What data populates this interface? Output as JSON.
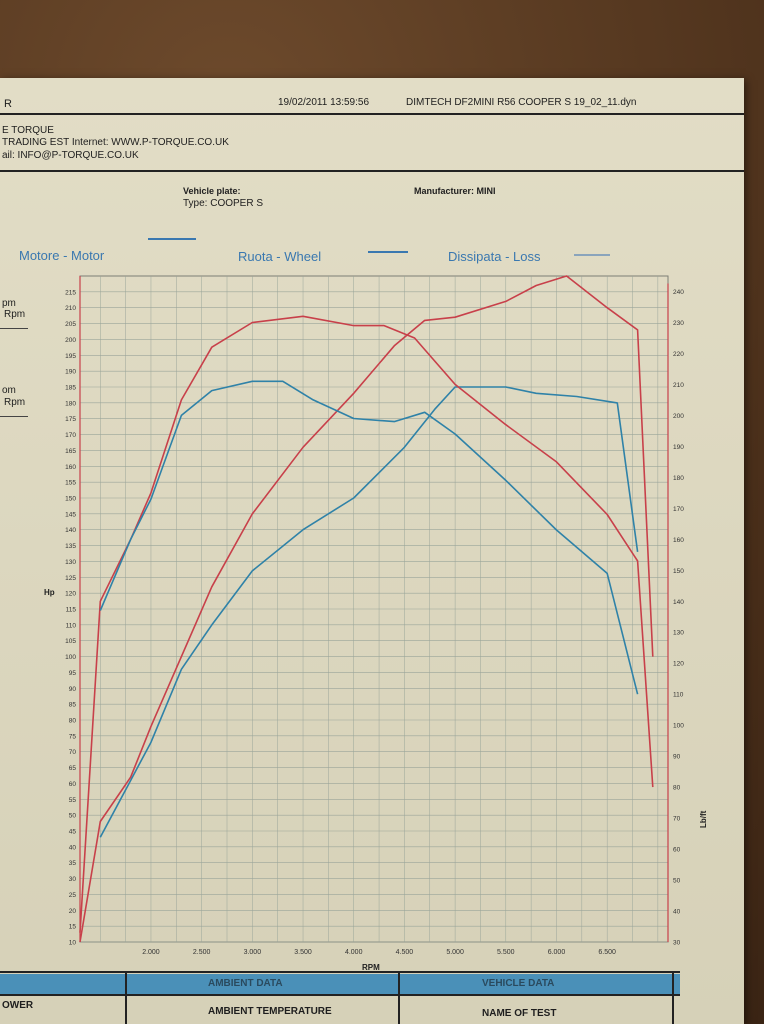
{
  "header": {
    "left_letter": "R",
    "datetime": "19/02/2011 13:59:56",
    "filename": "DIMTECH DF2MINI R56 COOPER S 19_02_11.dyn",
    "company_line1": "E TORQUE",
    "company_line2": "TRADING EST Internet: WWW.P-TORQUE.CO.UK",
    "company_line3": "ail: INFO@P-TORQUE.CO.UK"
  },
  "vehicle": {
    "plate_label": "Vehicle plate:",
    "type_label": "Type: COOPER S",
    "manufacturer_label": "Manufacturer: MINI"
  },
  "legend": {
    "motor": "Motore - Motor",
    "wheel": "Ruota - Wheel",
    "loss": "Dissipata - Loss"
  },
  "side_labels": [
    "pm",
    "Rpm",
    "om",
    "Rpm"
  ],
  "footer": {
    "row1": [
      "AMBIENT DATA",
      "VEHICLE DATA"
    ],
    "row2_left": "OWER",
    "ambient_temp": "AMBIENT TEMPERATURE",
    "name_of_test": "NAME OF TEST"
  },
  "colors": {
    "red_series": "#c8404a",
    "blue_series": "#2f82a8",
    "grid": "#9aa59a",
    "legend_blue": "#3a78b0"
  },
  "chart_data": {
    "type": "line",
    "xlabel": "RPM",
    "ylabel": "Hp",
    "y2label": "Lb/ft",
    "xlim": [
      1300,
      7100
    ],
    "ylim": [
      10,
      220
    ],
    "y2lim": [
      30,
      245
    ],
    "x_ticks": [
      2000,
      2500,
      3000,
      3500,
      4000,
      4500,
      5000,
      5500,
      6000,
      6500
    ],
    "x_tick_labels": [
      "2.000",
      "2.500",
      "3.000",
      "3.500",
      "4.000",
      "4.500",
      "5.000",
      "5.500",
      "6.000",
      "6.500"
    ],
    "y_ticks": [
      10,
      15,
      20,
      25,
      30,
      35,
      40,
      45,
      50,
      55,
      60,
      65,
      70,
      75,
      80,
      85,
      90,
      95,
      100,
      105,
      110,
      115,
      120,
      125,
      130,
      135,
      140,
      145,
      150,
      155,
      160,
      165,
      170,
      175,
      180,
      185,
      190,
      195,
      200,
      205,
      210,
      215
    ],
    "y2_ticks": [
      30,
      40,
      50,
      60,
      70,
      80,
      90,
      100,
      110,
      120,
      130,
      140,
      150,
      160,
      170,
      180,
      190,
      200,
      210,
      220,
      230,
      240
    ],
    "series": [
      {
        "color": "#c8404a",
        "axis": "left",
        "points": [
          [
            1300,
            10
          ],
          [
            1500,
            48
          ],
          [
            1800,
            62
          ],
          [
            2000,
            78
          ],
          [
            2300,
            100
          ],
          [
            2600,
            122
          ],
          [
            3000,
            145
          ],
          [
            3500,
            166
          ],
          [
            4000,
            183
          ],
          [
            4400,
            198
          ],
          [
            4700,
            206
          ],
          [
            5000,
            207
          ],
          [
            5500,
            212
          ],
          [
            5800,
            217
          ],
          [
            6100,
            220
          ],
          [
            6500,
            210
          ],
          [
            6800,
            203
          ],
          [
            6950,
            100
          ]
        ]
      },
      {
        "color": "#2f82a8",
        "axis": "left",
        "points": [
          [
            1500,
            43
          ],
          [
            1700,
            55
          ],
          [
            2000,
            73
          ],
          [
            2300,
            96
          ],
          [
            2600,
            110
          ],
          [
            3000,
            127
          ],
          [
            3500,
            140
          ],
          [
            4000,
            150
          ],
          [
            4500,
            166
          ],
          [
            4800,
            178
          ],
          [
            5000,
            185
          ],
          [
            5300,
            185
          ],
          [
            5500,
            185
          ],
          [
            5800,
            183
          ],
          [
            6200,
            182
          ],
          [
            6600,
            180
          ],
          [
            6800,
            133
          ]
        ]
      },
      {
        "color": "#c8404a",
        "axis": "right",
        "points": [
          [
            1300,
            33
          ],
          [
            1500,
            140
          ],
          [
            1800,
            160
          ],
          [
            2000,
            175
          ],
          [
            2300,
            205
          ],
          [
            2600,
            222
          ],
          [
            3000,
            230
          ],
          [
            3500,
            232
          ],
          [
            4000,
            229
          ],
          [
            4300,
            229
          ],
          [
            4600,
            225
          ],
          [
            5000,
            210
          ],
          [
            5500,
            197
          ],
          [
            6000,
            185
          ],
          [
            6500,
            168
          ],
          [
            6800,
            153
          ],
          [
            6950,
            80
          ]
        ]
      },
      {
        "color": "#2f82a8",
        "axis": "right",
        "points": [
          [
            1500,
            137
          ],
          [
            1800,
            160
          ],
          [
            2000,
            173
          ],
          [
            2300,
            200
          ],
          [
            2600,
            208
          ],
          [
            3000,
            211
          ],
          [
            3300,
            211
          ],
          [
            3600,
            205
          ],
          [
            4000,
            199
          ],
          [
            4400,
            198
          ],
          [
            4700,
            201
          ],
          [
            5000,
            194
          ],
          [
            5500,
            179
          ],
          [
            6000,
            163
          ],
          [
            6500,
            149
          ],
          [
            6800,
            110
          ]
        ]
      }
    ]
  }
}
